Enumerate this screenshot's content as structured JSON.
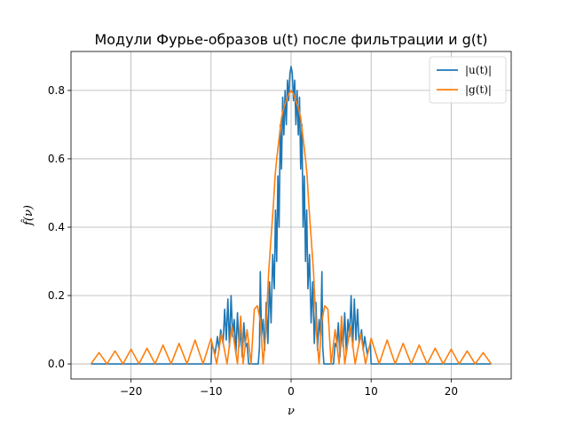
{
  "chart_data": {
    "type": "line",
    "title": "Модули Фурье-образов u(t) после фильтрации и g(t)",
    "xlabel": "ν",
    "ylabel": "f̂(ν)",
    "xlim": [
      -27.5,
      27.5
    ],
    "ylim": [
      -0.044,
      0.914
    ],
    "grid": true,
    "legend_position": "top-right",
    "x_ticks": [
      -20,
      -10,
      0,
      10,
      20
    ],
    "x_tick_labels": [
      "−20",
      "−10",
      "0",
      "10",
      "20"
    ],
    "y_ticks": [
      0.0,
      0.2,
      0.4,
      0.6,
      0.8
    ],
    "y_tick_labels": [
      "0.0",
      "0.2",
      "0.4",
      "0.6",
      "0.8"
    ],
    "series": [
      {
        "name": "|u(t)|",
        "color": "#1f77b4",
        "x": [
          -25,
          -10,
          -9.9,
          -9.5,
          -9.2,
          -9.0,
          -8.8,
          -8.5,
          -8.3,
          -8.1,
          -7.9,
          -7.7,
          -7.5,
          -7.3,
          -7.1,
          -6.9,
          -6.7,
          -6.5,
          -6.3,
          -6.1,
          -5.9,
          -5.7,
          -5.5,
          -5.3,
          -5.1,
          -4.9,
          -4.7,
          -4.5,
          -4.3,
          -4.1,
          -3.95,
          -3.85,
          -3.7,
          -3.5,
          -3.3,
          -3.1,
          -2.9,
          -2.7,
          -2.5,
          -2.3,
          -2.1,
          -1.95,
          -1.8,
          -1.65,
          -1.5,
          -1.35,
          -1.2,
          -1.05,
          -0.9,
          -0.75,
          -0.6,
          -0.45,
          -0.3,
          -0.15,
          0,
          0.15,
          0.3,
          0.45,
          0.6,
          0.75,
          0.9,
          1.05,
          1.2,
          1.35,
          1.5,
          1.65,
          1.8,
          1.95,
          2.1,
          2.3,
          2.5,
          2.7,
          2.9,
          3.1,
          3.3,
          3.5,
          3.7,
          3.85,
          3.95,
          4.1,
          4.3,
          4.5,
          4.7,
          4.9,
          5.1,
          5.3,
          5.5,
          5.7,
          5.9,
          6.1,
          6.3,
          6.5,
          6.7,
          6.9,
          7.1,
          7.3,
          7.5,
          7.7,
          7.9,
          8.1,
          8.3,
          8.5,
          8.8,
          9.0,
          9.2,
          9.5,
          9.9,
          10,
          25
        ],
        "y": [
          0,
          0,
          0.06,
          0.03,
          0.08,
          0.04,
          0.1,
          0.06,
          0.16,
          0.07,
          0.19,
          0.05,
          0.2,
          0.08,
          0.13,
          0.03,
          0.15,
          0.05,
          0.1,
          0.02,
          0.12,
          0.05,
          0.06,
          0.0,
          0.0,
          0.0,
          0.0,
          0.0,
          0.0,
          0.0,
          0.05,
          0.27,
          0.08,
          0.13,
          0.04,
          0.18,
          0.06,
          0.24,
          0.12,
          0.32,
          0.22,
          0.45,
          0.3,
          0.55,
          0.4,
          0.7,
          0.57,
          0.78,
          0.67,
          0.8,
          0.7,
          0.83,
          0.77,
          0.85,
          0.87,
          0.85,
          0.77,
          0.83,
          0.7,
          0.8,
          0.67,
          0.78,
          0.57,
          0.7,
          0.4,
          0.55,
          0.3,
          0.45,
          0.22,
          0.32,
          0.12,
          0.24,
          0.06,
          0.18,
          0.04,
          0.13,
          0.08,
          0.27,
          0.05,
          0.0,
          0.0,
          0.0,
          0.0,
          0.0,
          0.0,
          0.0,
          0.06,
          0.05,
          0.12,
          0.02,
          0.1,
          0.05,
          0.15,
          0.03,
          0.13,
          0.08,
          0.2,
          0.05,
          0.19,
          0.07,
          0.16,
          0.06,
          0.1,
          0.04,
          0.08,
          0.03,
          0.06,
          0,
          0
        ]
      },
      {
        "name": "|g(t)|",
        "color": "#ff7f0e",
        "x": [
          -25,
          -24,
          -23,
          -22,
          -21,
          -20,
          -19,
          -18,
          -17,
          -16,
          -15,
          -14,
          -13,
          -12,
          -11,
          -10,
          -9.3,
          -8.7,
          -8.0,
          -7.4,
          -6.7,
          -6.3,
          -6.0,
          -5.5,
          -5.0,
          -4.6,
          -4.2,
          -3.8,
          -3.5,
          -3.2,
          -3.0,
          -2.8,
          -2.5,
          -2.2,
          -2.0,
          -1.8,
          -1.5,
          -1.2,
          -0.9,
          -0.6,
          -0.3,
          0,
          0.3,
          0.6,
          0.9,
          1.2,
          1.5,
          1.8,
          2.0,
          2.2,
          2.5,
          2.8,
          3.0,
          3.2,
          3.5,
          3.8,
          4.2,
          4.6,
          5.0,
          5.5,
          6.0,
          6.3,
          6.7,
          7.4,
          8.0,
          8.7,
          9.3,
          10,
          11,
          12,
          13,
          14,
          15,
          16,
          17,
          18,
          19,
          20,
          21,
          22,
          23,
          24,
          25
        ],
        "y": [
          0.0,
          0.033,
          0.0,
          0.038,
          0.0,
          0.043,
          0.0,
          0.046,
          0.0,
          0.055,
          0.0,
          0.06,
          0.0,
          0.07,
          0.0,
          0.075,
          0.0,
          0.088,
          0.0,
          0.11,
          0.0,
          0.14,
          0.0,
          0.1,
          0.0,
          0.16,
          0.17,
          0.12,
          0.0,
          0.08,
          0.17,
          0.27,
          0.37,
          0.47,
          0.55,
          0.6,
          0.66,
          0.72,
          0.75,
          0.77,
          0.79,
          0.8,
          0.79,
          0.77,
          0.75,
          0.72,
          0.66,
          0.6,
          0.55,
          0.47,
          0.37,
          0.27,
          0.17,
          0.08,
          0.0,
          0.12,
          0.17,
          0.16,
          0.0,
          0.1,
          0.0,
          0.14,
          0.0,
          0.11,
          0.0,
          0.088,
          0.0,
          0.075,
          0.0,
          0.07,
          0.0,
          0.06,
          0.0,
          0.055,
          0.0,
          0.046,
          0.0,
          0.043,
          0.0,
          0.038,
          0.0,
          0.033,
          0.0
        ]
      }
    ]
  }
}
